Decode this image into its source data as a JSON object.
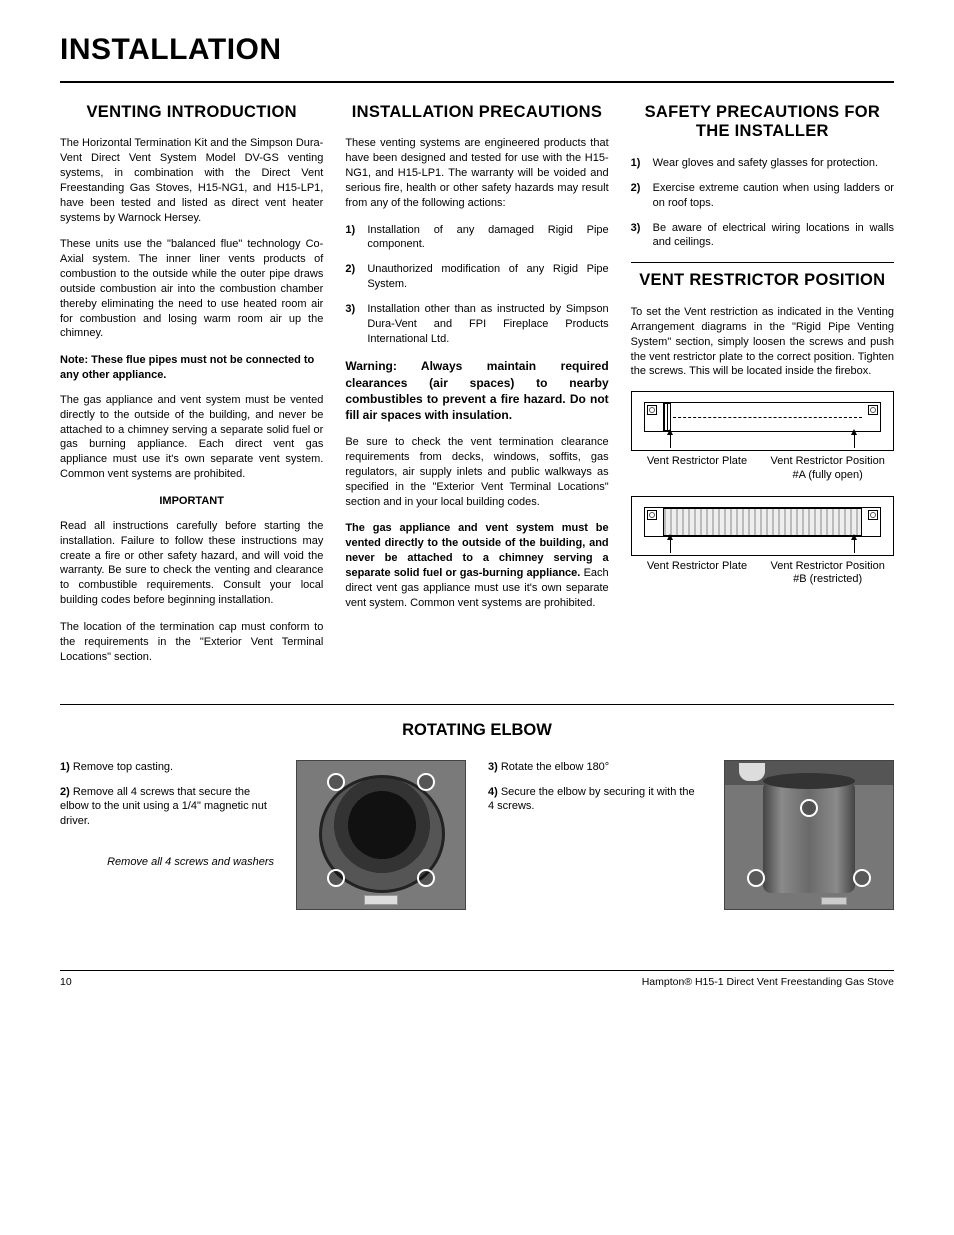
{
  "page_title": "INSTALLATION",
  "col1": {
    "heading": "VENTING INTRODUCTION",
    "p1": "The Horizontal Termination Kit and the Simpson Dura-Vent Direct Vent System Model DV-GS venting systems, in combination with the Direct Vent Freestanding Gas Stoves, H15-NG1, and H15-LP1, have been tested and listed as direct vent heater systems by Warnock Hersey.",
    "p2": "These units use the \"balanced flue\" technology Co-Axial system. The inner liner vents products of combustion to the outside while the outer pipe draws outside combustion air into the combustion chamber thereby eliminating the need to use heated room air for combustion and losing warm room air up the chimney.",
    "note": "Note: These flue pipes must not be connected to any other appliance.",
    "p3": "The gas appliance and vent system must be vented directly to the outside of the building, and never be attached to a chimney serving a separate solid fuel or gas burning appliance. Each direct vent gas appliance must use it's own separate vent system. Common vent systems are prohibited.",
    "important": "IMPORTANT",
    "p4": "Read all instructions carefully before starting the installation. Failure to follow these instructions may create a fire or other safety hazard, and will void the warranty. Be sure to check the venting and clearance to combustible requirements. Consult your local building codes before beginning installation.",
    "p5": "The location of the termination cap must conform to the requirements in the \"Exterior Vent Terminal Locations\" section."
  },
  "col2": {
    "heading": "INSTALLATION PRECAUTIONS",
    "p1": "These venting systems are engineered products that have been designed and tested for use with the H15-NG1, and H15-LP1. The warranty will be voided and serious fire, health or other safety hazards may result from any of the following actions:",
    "items": [
      "Installation of any damaged Rigid Pipe component.",
      "Unauthorized modification of any Rigid Pipe System.",
      "Installation other than as instructed by Simpson Dura-Vent and FPI Fireplace Products International Ltd."
    ],
    "warn": "Warning: Always maintain required clearances (air spaces) to nearby combustibles to prevent a fire hazard. Do not fill air spaces with insulation.",
    "p2": "Be sure to check the vent termination clearance requirements from decks, windows, soffits, gas regulators, air supply inlets and public walkways as specified in the \"Exterior Vent Terminal Locations\" section and in your local building codes.",
    "p3a": "The gas appliance and vent system must be vented directly to the outside of the building, and never be attached to a chimney serving a separate solid fuel or gas-burning appliance.",
    "p3b": " Each direct vent gas appliance must use it's own separate vent system. Common vent systems are prohibited."
  },
  "col3": {
    "heading1": "SAFETY PRECAUTIONS FOR THE INSTALLER",
    "items": [
      "Wear gloves and safety glasses for protection.",
      "Exercise extreme caution when using ladders or on roof tops.",
      "Be aware of electrical wiring locations in walls and ceilings."
    ],
    "heading2": "VENT RESTRICTOR POSITION",
    "p1": "To set the Vent restriction as indicated in the Venting Arrangement diagrams in the \"Rigid Pipe Venting System\" section, simply loosen the screws and push the vent restrictor plate to the correct position. Tighten the screws. This will be located inside the firebox.",
    "diagA_left": "Vent Restrictor Plate",
    "diagA_right": "Vent Restrictor Position #A (fully open)",
    "diagB_left": "Vent Restrictor Plate",
    "diagB_right": "Vent Restrictor Position #B (restricted)"
  },
  "rotating": {
    "heading": "ROTATING ELBOW",
    "s1_num": "1)",
    "s1": " Remove top casting.",
    "s2_num": "2)",
    "s2": " Remove all 4 screws that secure the elbow to the unit using a 1/4\" magnetic nut driver.",
    "caption": "Remove all 4 screws and washers",
    "s3_num": "3)",
    "s3": " Rotate the elbow 180°",
    "s4_num": "4)",
    "s4": " Secure the elbow by securing it with the 4 screws."
  },
  "footer": {
    "page": "10",
    "product": "Hampton® H15-1 Direct Vent Freestanding Gas Stove"
  }
}
